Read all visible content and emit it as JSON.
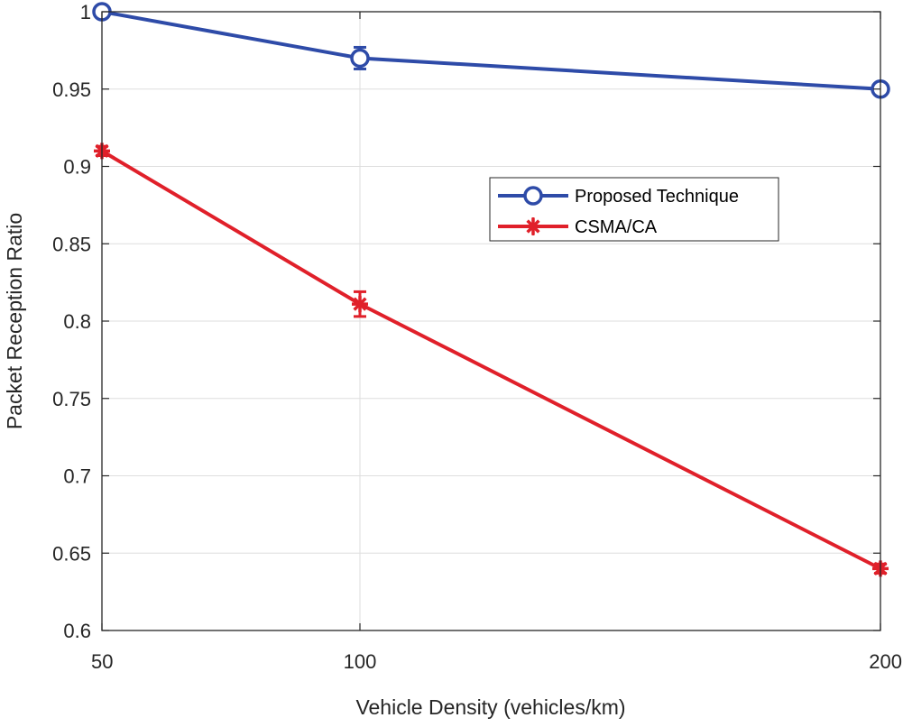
{
  "chart_data": {
    "type": "line",
    "title": "",
    "xlabel": "Vehicle Density (vehicles/km)",
    "ylabel": "Packet Reception Ratio",
    "x": [
      50,
      100,
      200
    ],
    "x_tick_labels": [
      "50",
      "100",
      "200"
    ],
    "y_tick_labels": [
      "0.6",
      "0.65",
      "0.7",
      "0.75",
      "0.8",
      "0.85",
      "0.9",
      "0.95",
      "1"
    ],
    "ylim": [
      0.6,
      1.0
    ],
    "grid": true,
    "legend_position": "center-right",
    "series": [
      {
        "name": "Proposed Technique",
        "values": [
          1.0,
          0.97,
          0.95
        ],
        "error": [
          0.002,
          0.007,
          0.003
        ],
        "color": "#2E4BA8",
        "marker": "circle"
      },
      {
        "name": "CSMA/CA",
        "values": [
          0.91,
          0.811,
          0.64
        ],
        "error": [
          0.003,
          0.008,
          0.003
        ],
        "color": "#E0202A",
        "marker": "star"
      }
    ]
  }
}
